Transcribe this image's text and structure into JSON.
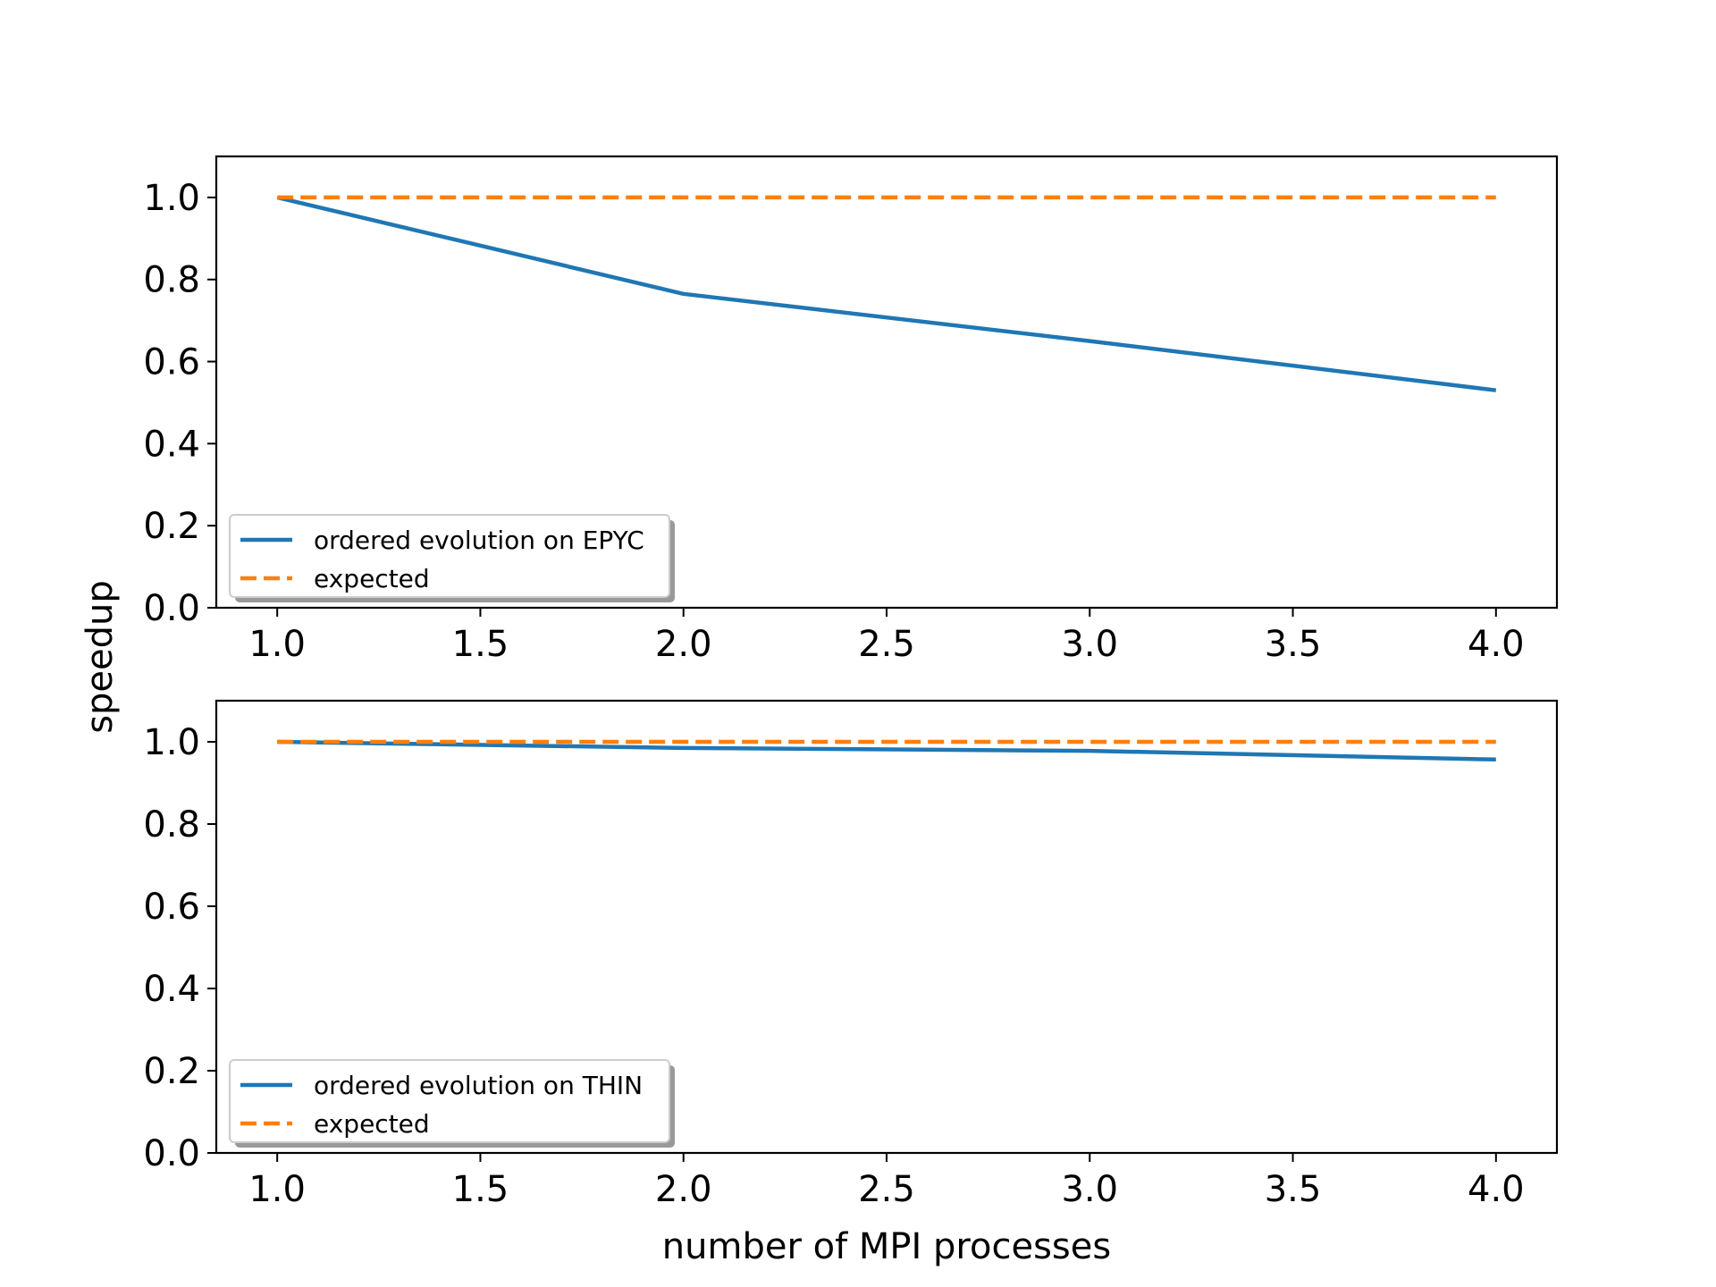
{
  "figure": {
    "ylabel": "speedup",
    "xlabel": "number of MPI processes"
  },
  "chart_data": [
    {
      "type": "line",
      "xlim": [
        0.85,
        4.15
      ],
      "ylim": [
        0.0,
        1.1
      ],
      "x_ticks": [
        "1.0",
        "1.5",
        "2.0",
        "2.5",
        "3.0",
        "3.5",
        "4.0"
      ],
      "y_ticks": [
        "0.0",
        "0.2",
        "0.4",
        "0.6",
        "0.8",
        "1.0"
      ],
      "grid": false,
      "legend_position": "lower-left",
      "series": [
        {
          "name": "ordered evolution on EPYC",
          "x": [
            1,
            2,
            3,
            4
          ],
          "y": [
            1.0,
            0.765,
            0.65,
            0.53
          ],
          "color": "#1f77b4",
          "style": "solid"
        },
        {
          "name": "expected",
          "x": [
            1,
            2,
            3,
            4
          ],
          "y": [
            1.0,
            1.0,
            1.0,
            1.0
          ],
          "color": "#ff7f0e",
          "style": "dashed"
        }
      ]
    },
    {
      "type": "line",
      "xlim": [
        0.85,
        4.15
      ],
      "ylim": [
        0.0,
        1.1
      ],
      "x_ticks": [
        "1.0",
        "1.5",
        "2.0",
        "2.5",
        "3.0",
        "3.5",
        "4.0"
      ],
      "y_ticks": [
        "0.0",
        "0.2",
        "0.4",
        "0.6",
        "0.8",
        "1.0"
      ],
      "grid": false,
      "legend_position": "lower-left",
      "series": [
        {
          "name": "ordered evolution on THIN",
          "x": [
            1,
            2,
            3,
            4
          ],
          "y": [
            1.0,
            0.985,
            0.978,
            0.957
          ],
          "color": "#1f77b4",
          "style": "solid"
        },
        {
          "name": "expected",
          "x": [
            1,
            2,
            3,
            4
          ],
          "y": [
            1.0,
            1.0,
            1.0,
            1.0
          ],
          "color": "#ff7f0e",
          "style": "dashed"
        }
      ]
    }
  ]
}
